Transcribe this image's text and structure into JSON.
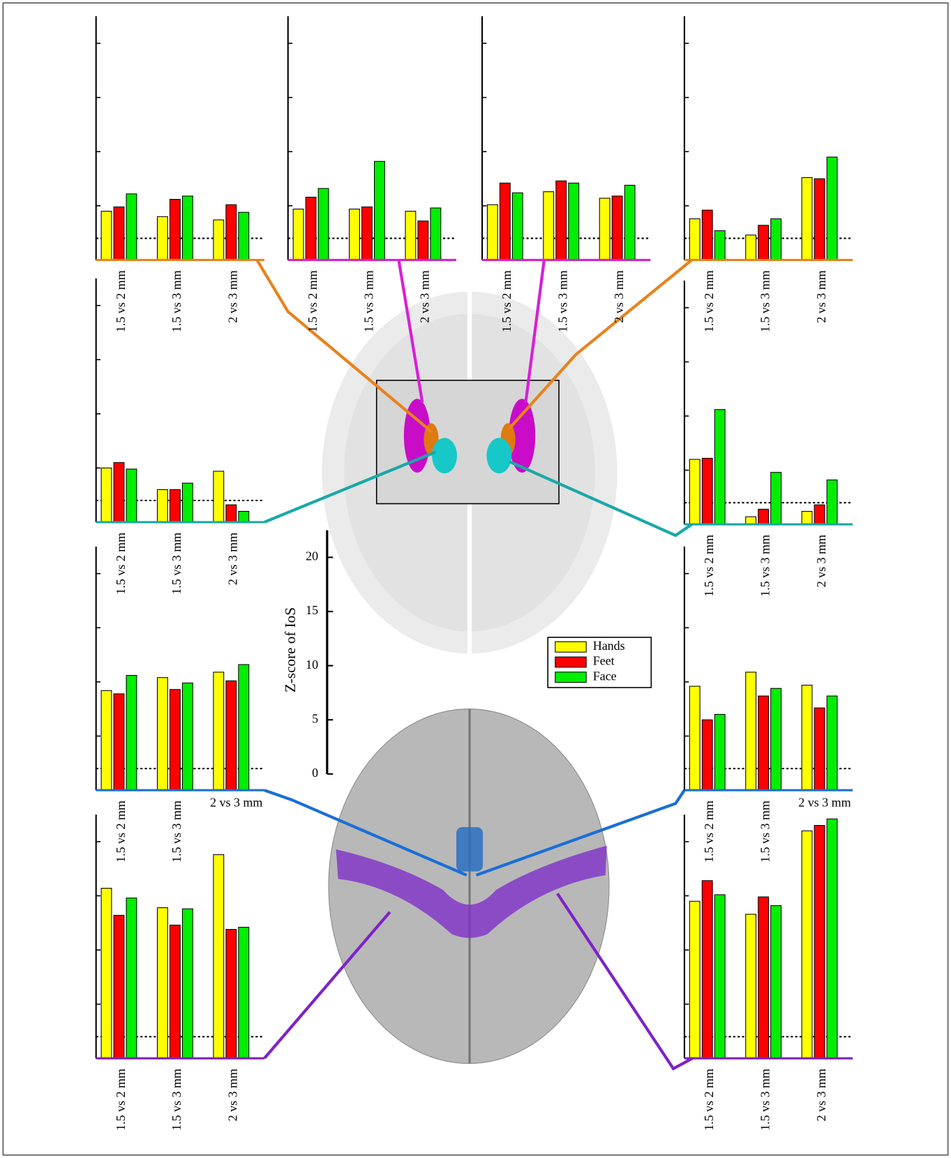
{
  "chart_data": {
    "type": "bar",
    "ylabel": "Z-score of IoS",
    "ylim": [
      0,
      22.5
    ],
    "yticks": [
      0,
      5,
      10,
      15,
      20
    ],
    "threshold": 2,
    "series": [
      {
        "name": "Hands",
        "color": "#ffff00"
      },
      {
        "name": "Feet",
        "color": "#ff0000"
      },
      {
        "name": "Face",
        "color": "#00ee00"
      }
    ],
    "panels": [
      {
        "color": "#e8821e",
        "categories": [
          "1.5 vs 2 mm",
          "1.5 vs 3 mm",
          "2 vs 3 mm"
        ],
        "last_label_horizontal": false,
        "series": [
          {
            "values": [
              4.5,
              4.0,
              3.7
            ]
          },
          {
            "values": [
              4.9,
              5.6,
              5.1
            ]
          },
          {
            "values": [
              6.1,
              5.9,
              4.4
            ]
          }
        ]
      },
      {
        "color": "#d81fd8",
        "categories": [
          "1.5 vs 2 mm",
          "1.5 vs 3 mm",
          "2 vs 3 mm"
        ],
        "last_label_horizontal": false,
        "series": [
          {
            "values": [
              4.7,
              4.7,
              4.5
            ]
          },
          {
            "values": [
              5.8,
              4.9,
              3.6
            ]
          },
          {
            "values": [
              6.6,
              9.1,
              4.8
            ]
          }
        ]
      },
      {
        "color": "#d81fd8",
        "categories": [
          "1.5 vs 2 mm",
          "1.5 vs 3 mm",
          "2 vs 3 mm"
        ],
        "last_label_horizontal": false,
        "series": [
          {
            "values": [
              5.1,
              6.3,
              5.7
            ]
          },
          {
            "values": [
              7.1,
              7.3,
              5.9
            ]
          },
          {
            "values": [
              6.2,
              7.1,
              6.9
            ]
          }
        ]
      },
      {
        "color": "#e8821e",
        "categories": [
          "1.5 vs 2 mm",
          "1.5 vs 3 mm",
          "2 vs 3 mm"
        ],
        "last_label_horizontal": false,
        "series": [
          {
            "values": [
              3.8,
              2.3,
              7.6
            ]
          },
          {
            "values": [
              4.6,
              3.2,
              7.5
            ]
          },
          {
            "values": [
              2.7,
              3.8,
              9.5
            ]
          }
        ]
      },
      {
        "color": "#1aa8a8",
        "categories": [
          "1.5 vs 2 mm",
          "1.5 vs 3 mm",
          "2 vs 3 mm"
        ],
        "last_label_horizontal": false,
        "series": [
          {
            "values": [
              5.0,
              3.0,
              4.7
            ]
          },
          {
            "values": [
              5.5,
              3.0,
              1.6
            ]
          },
          {
            "values": [
              4.9,
              3.6,
              1.0
            ]
          }
        ]
      },
      {
        "color": "#1aa8a8",
        "categories": [
          "1.5 vs 2 mm",
          "1.5 vs 3 mm",
          "2 vs 3 mm"
        ],
        "last_label_horizontal": false,
        "series": [
          {
            "values": [
              6.0,
              0.7,
              1.2
            ]
          },
          {
            "values": [
              6.1,
              1.4,
              1.8
            ]
          },
          {
            "values": [
              10.6,
              4.8,
              4.1
            ]
          }
        ]
      },
      {
        "color": "#1a6fd6",
        "categories": [
          "1.5 vs 2 mm",
          "1.5 vs 3 mm",
          "2 vs 3 mm"
        ],
        "last_label_horizontal": true,
        "series": [
          {
            "values": [
              9.2,
              10.4,
              10.9
            ]
          },
          {
            "values": [
              8.9,
              9.3,
              10.1
            ]
          },
          {
            "values": [
              10.6,
              9.9,
              11.6
            ]
          }
        ]
      },
      {
        "color": "#1a6fd6",
        "categories": [
          "1.5 vs 2 mm",
          "1.5 vs 3 mm",
          "2 vs 3 mm"
        ],
        "last_label_horizontal": true,
        "series": [
          {
            "values": [
              9.6,
              10.9,
              9.7
            ]
          },
          {
            "values": [
              6.5,
              8.7,
              7.6
            ]
          },
          {
            "values": [
              7.0,
              9.4,
              8.7
            ]
          }
        ]
      },
      {
        "color": "#7e22c8",
        "categories": [
          "1.5 vs 2 mm",
          "1.5 vs 3 mm",
          "2 vs 3 mm"
        ],
        "last_label_horizontal": false,
        "series": [
          {
            "values": [
              15.7,
              13.9,
              18.8
            ]
          },
          {
            "values": [
              13.2,
              12.3,
              11.9
            ]
          },
          {
            "values": [
              14.8,
              13.8,
              12.1
            ]
          }
        ]
      },
      {
        "color": "#7e22c8",
        "categories": [
          "1.5 vs 2 mm",
          "1.5 vs 3 mm",
          "2 vs 3 mm"
        ],
        "last_label_horizontal": false,
        "series": [
          {
            "values": [
              14.5,
              13.3,
              21.0
            ]
          },
          {
            "values": [
              16.4,
              14.9,
              21.5
            ]
          },
          {
            "values": [
              15.1,
              14.1,
              22.1
            ]
          }
        ]
      }
    ]
  }
}
